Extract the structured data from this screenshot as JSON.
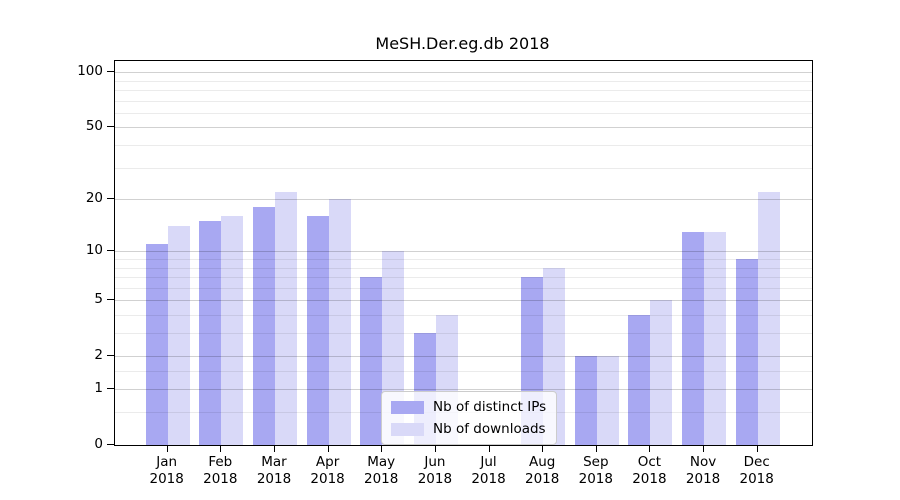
{
  "title": "MeSH.Der.eg.db 2018",
  "legend": {
    "items": [
      {
        "label": "Nb of distinct IPs",
        "color": "#a8a8f2"
      },
      {
        "label": "Nb of downloads",
        "color": "#d9d9f8"
      }
    ]
  },
  "colors": {
    "distinct_ips_bar": "#a8a8f2",
    "downloads_bar": "#d9d9f8",
    "major_gridline": "#c9c9c9",
    "minor_gridline": "#ededed",
    "axis": "#000000"
  },
  "chart_data": {
    "type": "bar",
    "title": "MeSH.Der.eg.db 2018",
    "categories": [
      "Jan",
      "Feb",
      "Mar",
      "Apr",
      "May",
      "Jun",
      "Jul",
      "Aug",
      "Sep",
      "Oct",
      "Nov",
      "Dec"
    ],
    "category_year": "2018",
    "series": [
      {
        "name": "Nb of distinct IPs",
        "color": "#a8a8f2",
        "values": [
          11,
          15,
          18,
          16,
          7,
          3,
          0,
          7,
          2,
          4,
          13,
          9
        ]
      },
      {
        "name": "Nb of downloads",
        "color": "#d9d9f8",
        "values": [
          14,
          16,
          22,
          20,
          10,
          4,
          0,
          8,
          2,
          5,
          13,
          22
        ]
      }
    ],
    "xlabel": "",
    "ylabel": "",
    "yscale": "log1p",
    "ylim": [
      0,
      115
    ],
    "y_ticks": [
      100,
      50,
      20,
      10,
      5,
      2,
      1,
      0
    ],
    "y_minor_gridlines": [
      90,
      80,
      70,
      60,
      40,
      30,
      9,
      8,
      7,
      6,
      4,
      3,
      1.5,
      0.5
    ],
    "grid": true,
    "grid_on_top_of_bars": true,
    "legend_position": "bottom-center"
  }
}
